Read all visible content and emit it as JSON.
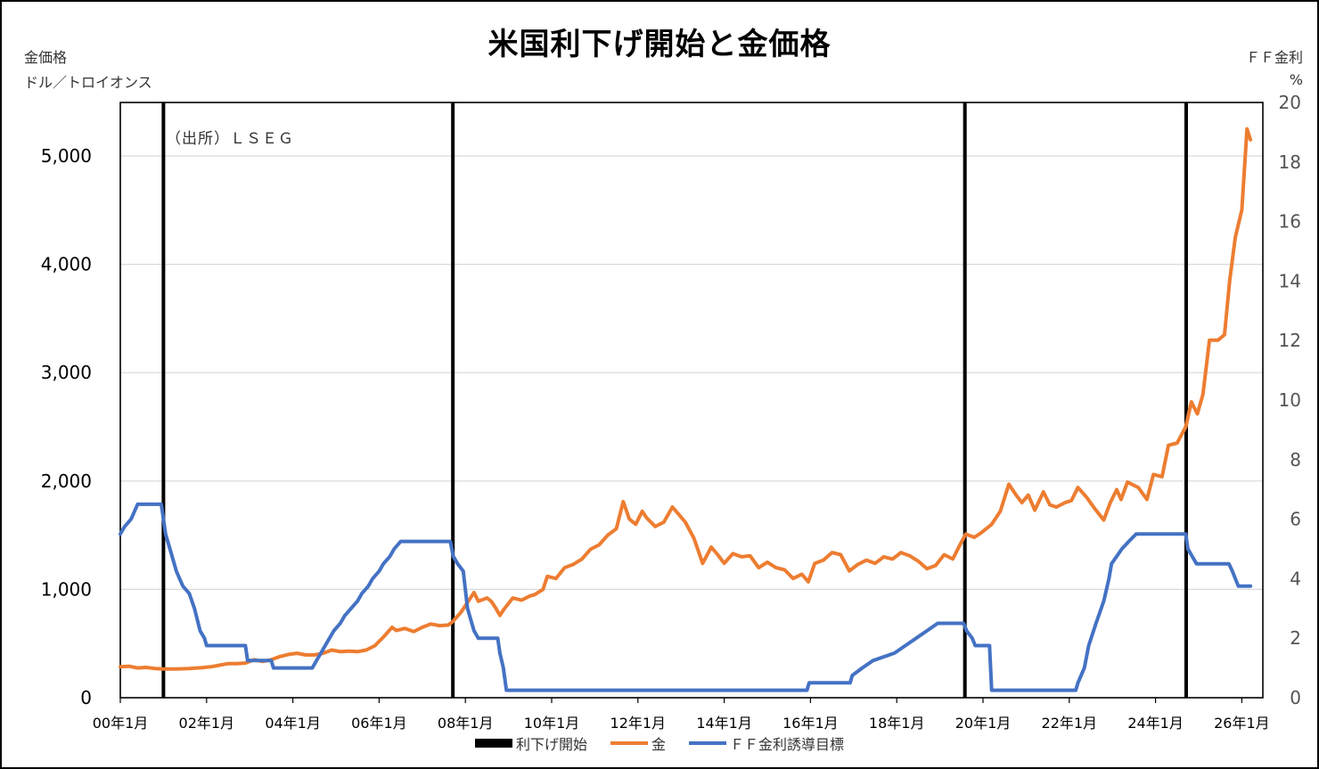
{
  "chart_data": {
    "type": "line",
    "title": "米国利下げ開始と金価格",
    "source_note": "（出所）ＬＳＥＧ",
    "left_axis": {
      "label_line1": "金価格",
      "label_line2": "ドル／トロイオンス",
      "range": [
        0,
        5500
      ],
      "ticks": [
        "0",
        "1,000",
        "2,000",
        "3,000",
        "4,000",
        "5,000"
      ]
    },
    "right_axis": {
      "label_line1": "ＦＦ金利",
      "label_line2": "%",
      "range": [
        0,
        20
      ],
      "ticks": [
        "0",
        "2",
        "4",
        "6",
        "8",
        "10",
        "12",
        "14",
        "16",
        "18",
        "20"
      ]
    },
    "x_axis": {
      "ticks": [
        "00年1月",
        "02年1月",
        "04年1月",
        "06年1月",
        "08年1月",
        "10年1月",
        "12年1月",
        "14年1月",
        "16年1月",
        "18年1月",
        "20年1月",
        "22年1月",
        "24年1月",
        "26年1月"
      ],
      "range": [
        2000.0,
        2026.5
      ]
    },
    "grid": true,
    "legend": [
      {
        "name": "利下げ開始",
        "style": "bar",
        "color": "#000000"
      },
      {
        "name": "金",
        "style": "line",
        "color": "#ED7D31"
      },
      {
        "name": "ＦＦ金利誘導目標",
        "style": "line",
        "color": "#4472C4"
      }
    ],
    "rate_cut_starts": [
      2001.0,
      2007.71,
      2019.58,
      2024.71
    ],
    "series": [
      {
        "name": "金",
        "axis": "left",
        "color": "#ED7D31",
        "points": [
          [
            2000.0,
            285
          ],
          [
            2000.2,
            290
          ],
          [
            2000.4,
            275
          ],
          [
            2000.6,
            280
          ],
          [
            2000.8,
            270
          ],
          [
            2001.0,
            265
          ],
          [
            2001.3,
            265
          ],
          [
            2001.6,
            270
          ],
          [
            2001.9,
            278
          ],
          [
            2002.1,
            285
          ],
          [
            2002.3,
            300
          ],
          [
            2002.5,
            315
          ],
          [
            2002.7,
            315
          ],
          [
            2002.9,
            320
          ],
          [
            2003.1,
            350
          ],
          [
            2003.3,
            335
          ],
          [
            2003.5,
            350
          ],
          [
            2003.7,
            380
          ],
          [
            2003.9,
            400
          ],
          [
            2004.1,
            410
          ],
          [
            2004.3,
            395
          ],
          [
            2004.5,
            395
          ],
          [
            2004.7,
            410
          ],
          [
            2004.9,
            440
          ],
          [
            2005.1,
            425
          ],
          [
            2005.3,
            430
          ],
          [
            2005.5,
            425
          ],
          [
            2005.7,
            440
          ],
          [
            2005.9,
            480
          ],
          [
            2006.1,
            560
          ],
          [
            2006.3,
            650
          ],
          [
            2006.4,
            620
          ],
          [
            2006.6,
            640
          ],
          [
            2006.8,
            610
          ],
          [
            2007.0,
            650
          ],
          [
            2007.2,
            680
          ],
          [
            2007.4,
            665
          ],
          [
            2007.6,
            670
          ],
          [
            2007.7,
            700
          ],
          [
            2007.9,
            790
          ],
          [
            2008.0,
            850
          ],
          [
            2008.2,
            970
          ],
          [
            2008.3,
            890
          ],
          [
            2008.5,
            920
          ],
          [
            2008.6,
            890
          ],
          [
            2008.7,
            830
          ],
          [
            2008.8,
            760
          ],
          [
            2008.9,
            820
          ],
          [
            2009.1,
            920
          ],
          [
            2009.3,
            900
          ],
          [
            2009.5,
            940
          ],
          [
            2009.6,
            950
          ],
          [
            2009.8,
            1000
          ],
          [
            2009.9,
            1120
          ],
          [
            2010.1,
            1100
          ],
          [
            2010.3,
            1200
          ],
          [
            2010.5,
            1230
          ],
          [
            2010.7,
            1280
          ],
          [
            2010.9,
            1370
          ],
          [
            2011.1,
            1410
          ],
          [
            2011.3,
            1500
          ],
          [
            2011.5,
            1560
          ],
          [
            2011.66,
            1810
          ],
          [
            2011.8,
            1650
          ],
          [
            2011.95,
            1600
          ],
          [
            2012.1,
            1720
          ],
          [
            2012.2,
            1660
          ],
          [
            2012.4,
            1580
          ],
          [
            2012.6,
            1620
          ],
          [
            2012.8,
            1760
          ],
          [
            2012.95,
            1690
          ],
          [
            2013.1,
            1620
          ],
          [
            2013.3,
            1470
          ],
          [
            2013.5,
            1240
          ],
          [
            2013.7,
            1390
          ],
          [
            2013.85,
            1320
          ],
          [
            2014.0,
            1240
          ],
          [
            2014.2,
            1330
          ],
          [
            2014.4,
            1300
          ],
          [
            2014.6,
            1310
          ],
          [
            2014.8,
            1200
          ],
          [
            2015.0,
            1250
          ],
          [
            2015.2,
            1200
          ],
          [
            2015.4,
            1180
          ],
          [
            2015.6,
            1100
          ],
          [
            2015.8,
            1140
          ],
          [
            2015.95,
            1070
          ],
          [
            2016.1,
            1240
          ],
          [
            2016.3,
            1270
          ],
          [
            2016.5,
            1340
          ],
          [
            2016.7,
            1320
          ],
          [
            2016.9,
            1170
          ],
          [
            2017.1,
            1230
          ],
          [
            2017.3,
            1270
          ],
          [
            2017.5,
            1240
          ],
          [
            2017.7,
            1300
          ],
          [
            2017.9,
            1280
          ],
          [
            2018.1,
            1340
          ],
          [
            2018.3,
            1310
          ],
          [
            2018.5,
            1260
          ],
          [
            2018.7,
            1190
          ],
          [
            2018.9,
            1220
          ],
          [
            2019.1,
            1320
          ],
          [
            2019.3,
            1280
          ],
          [
            2019.45,
            1400
          ],
          [
            2019.6,
            1510
          ],
          [
            2019.8,
            1480
          ],
          [
            2019.95,
            1520
          ],
          [
            2020.2,
            1600
          ],
          [
            2020.4,
            1720
          ],
          [
            2020.6,
            1970
          ],
          [
            2020.75,
            1880
          ],
          [
            2020.9,
            1800
          ],
          [
            2021.05,
            1870
          ],
          [
            2021.2,
            1730
          ],
          [
            2021.4,
            1900
          ],
          [
            2021.55,
            1780
          ],
          [
            2021.7,
            1760
          ],
          [
            2021.9,
            1800
          ],
          [
            2022.05,
            1820
          ],
          [
            2022.2,
            1940
          ],
          [
            2022.4,
            1850
          ],
          [
            2022.6,
            1740
          ],
          [
            2022.8,
            1640
          ],
          [
            2022.95,
            1800
          ],
          [
            2023.1,
            1920
          ],
          [
            2023.2,
            1830
          ],
          [
            2023.35,
            1990
          ],
          [
            2023.6,
            1940
          ],
          [
            2023.8,
            1830
          ],
          [
            2023.95,
            2060
          ],
          [
            2024.15,
            2040
          ],
          [
            2024.3,
            2330
          ],
          [
            2024.5,
            2350
          ],
          [
            2024.7,
            2500
          ],
          [
            2024.83,
            2730
          ],
          [
            2024.97,
            2620
          ],
          [
            2025.1,
            2800
          ],
          [
            2025.25,
            3300
          ],
          [
            2025.45,
            3300
          ],
          [
            2025.6,
            3350
          ],
          [
            2025.72,
            3850
          ],
          [
            2025.85,
            4250
          ],
          [
            2026.0,
            4500
          ],
          [
            2026.12,
            5250
          ],
          [
            2026.2,
            5150
          ]
        ]
      },
      {
        "name": "ＦＦ金利誘導目標",
        "axis": "right",
        "color": "#4472C4",
        "points": [
          [
            2000.0,
            5.5
          ],
          [
            2000.1,
            5.75
          ],
          [
            2000.25,
            6.0
          ],
          [
            2000.4,
            6.5
          ],
          [
            2000.95,
            6.5
          ],
          [
            2001.05,
            5.5
          ],
          [
            2001.15,
            5.0
          ],
          [
            2001.3,
            4.25
          ],
          [
            2001.45,
            3.75
          ],
          [
            2001.6,
            3.5
          ],
          [
            2001.72,
            3.0
          ],
          [
            2001.85,
            2.25
          ],
          [
            2001.95,
            2.0
          ],
          [
            2002.0,
            1.75
          ],
          [
            2002.9,
            1.75
          ],
          [
            2002.95,
            1.25
          ],
          [
            2003.5,
            1.25
          ],
          [
            2003.55,
            1.0
          ],
          [
            2004.45,
            1.0
          ],
          [
            2004.55,
            1.25
          ],
          [
            2004.65,
            1.5
          ],
          [
            2004.75,
            1.75
          ],
          [
            2004.85,
            2.0
          ],
          [
            2004.95,
            2.25
          ],
          [
            2005.1,
            2.5
          ],
          [
            2005.2,
            2.75
          ],
          [
            2005.35,
            3.0
          ],
          [
            2005.5,
            3.25
          ],
          [
            2005.6,
            3.5
          ],
          [
            2005.75,
            3.75
          ],
          [
            2005.85,
            4.0
          ],
          [
            2006.0,
            4.25
          ],
          [
            2006.1,
            4.5
          ],
          [
            2006.25,
            4.75
          ],
          [
            2006.35,
            5.0
          ],
          [
            2006.5,
            5.25
          ],
          [
            2007.65,
            5.25
          ],
          [
            2007.72,
            4.75
          ],
          [
            2007.82,
            4.5
          ],
          [
            2007.95,
            4.25
          ],
          [
            2008.05,
            3.0
          ],
          [
            2008.2,
            2.25
          ],
          [
            2008.3,
            2.0
          ],
          [
            2008.75,
            2.0
          ],
          [
            2008.8,
            1.5
          ],
          [
            2008.88,
            1.0
          ],
          [
            2008.95,
            0.25
          ],
          [
            2015.92,
            0.25
          ],
          [
            2015.97,
            0.5
          ],
          [
            2016.92,
            0.5
          ],
          [
            2016.97,
            0.75
          ],
          [
            2017.2,
            1.0
          ],
          [
            2017.45,
            1.25
          ],
          [
            2017.95,
            1.5
          ],
          [
            2018.2,
            1.75
          ],
          [
            2018.45,
            2.0
          ],
          [
            2018.7,
            2.25
          ],
          [
            2018.95,
            2.5
          ],
          [
            2019.55,
            2.5
          ],
          [
            2019.62,
            2.25
          ],
          [
            2019.75,
            2.0
          ],
          [
            2019.82,
            1.75
          ],
          [
            2020.15,
            1.75
          ],
          [
            2020.2,
            0.25
          ],
          [
            2022.15,
            0.25
          ],
          [
            2022.2,
            0.5
          ],
          [
            2022.35,
            1.0
          ],
          [
            2022.45,
            1.75
          ],
          [
            2022.62,
            2.5
          ],
          [
            2022.8,
            3.25
          ],
          [
            2022.92,
            4.0
          ],
          [
            2022.98,
            4.5
          ],
          [
            2023.1,
            4.75
          ],
          [
            2023.22,
            5.0
          ],
          [
            2023.38,
            5.25
          ],
          [
            2023.55,
            5.5
          ],
          [
            2024.7,
            5.5
          ],
          [
            2024.75,
            5.0
          ],
          [
            2024.85,
            4.75
          ],
          [
            2024.95,
            4.5
          ],
          [
            2025.7,
            4.5
          ],
          [
            2025.78,
            4.25
          ],
          [
            2025.85,
            4.0
          ],
          [
            2025.92,
            3.75
          ],
          [
            2026.2,
            3.75
          ]
        ]
      }
    ]
  }
}
